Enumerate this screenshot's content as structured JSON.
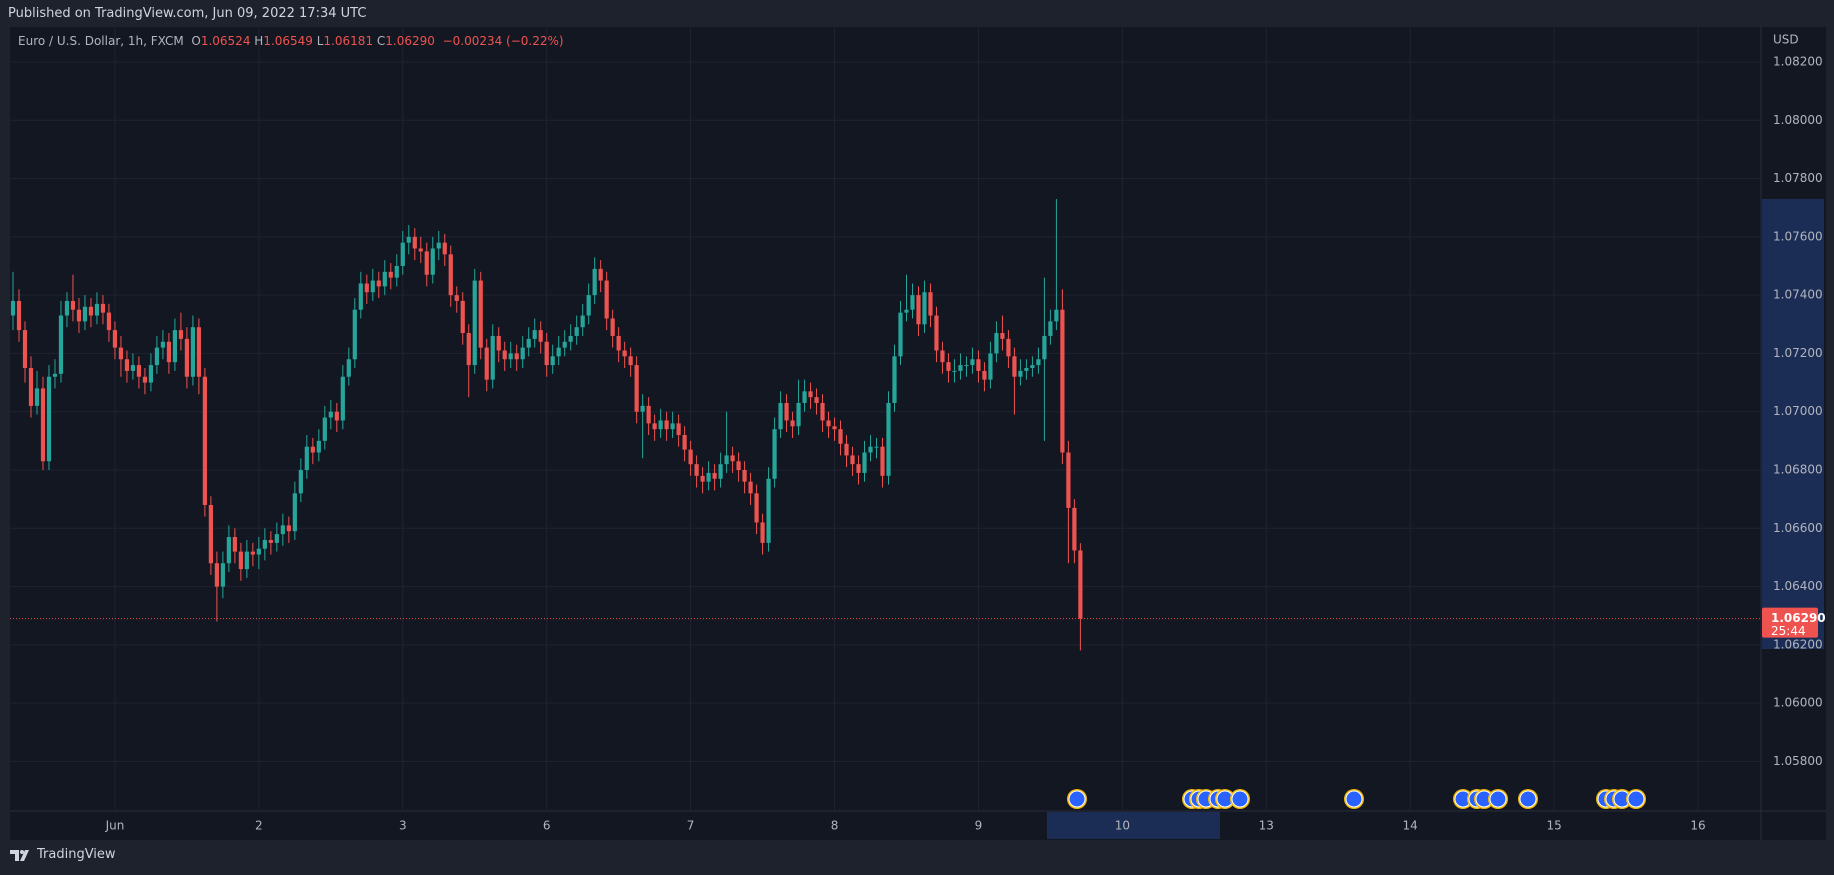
{
  "header": {
    "published": "Published on TradingView.com, Jun 09, 2022 17:34 UTC"
  },
  "footer": {
    "brand": "TradingView"
  },
  "chart_data": {
    "type": "candlestick",
    "legend": {
      "symbol": "Euro / U.S. Dollar, 1h, FXCM",
      "open_label": "O",
      "open": "1.06524",
      "high_label": "H",
      "high": "1.06549",
      "low_label": "L",
      "low": "1.06181",
      "close_label": "C",
      "close": "1.06290",
      "change": "−0.00234 (−0.22%)"
    },
    "currency": "USD",
    "up_color": "#26a69a",
    "down_color": "#ef5350",
    "grid": true,
    "xlim": [
      -0.5,
      291.5
    ],
    "xticks": [
      {
        "value": 17,
        "label": "Jun"
      },
      {
        "value": 41,
        "label": "2"
      },
      {
        "value": 65,
        "label": "3"
      },
      {
        "value": 89,
        "label": "6"
      },
      {
        "value": 113,
        "label": "7"
      },
      {
        "value": 137,
        "label": "8"
      },
      {
        "value": 161,
        "label": "9"
      },
      {
        "value": 185,
        "label": "10"
      },
      {
        "value": 209,
        "label": "13"
      },
      {
        "value": 233,
        "label": "14"
      },
      {
        "value": 257,
        "label": "15"
      },
      {
        "value": 281,
        "label": "16"
      }
    ],
    "ylim": [
      1.0563,
      1.0832
    ],
    "yticks": [
      {
        "value": 1.058,
        "label": "1.05800"
      },
      {
        "value": 1.06,
        "label": "1.06000"
      },
      {
        "value": 1.062,
        "label": "1.06200"
      },
      {
        "value": 1.064,
        "label": "1.06400"
      },
      {
        "value": 1.066,
        "label": "1.06600"
      },
      {
        "value": 1.068,
        "label": "1.06800"
      },
      {
        "value": 1.07,
        "label": "1.07000"
      },
      {
        "value": 1.072,
        "label": "1.07200"
      },
      {
        "value": 1.074,
        "label": "1.07400"
      },
      {
        "value": 1.076,
        "label": "1.07600"
      },
      {
        "value": 1.078,
        "label": "1.07800"
      },
      {
        "value": 1.08,
        "label": "1.08000"
      },
      {
        "value": 1.082,
        "label": "1.08200"
      }
    ],
    "last_price": {
      "value": 1.0629,
      "label": "1.06290",
      "countdown": "25:44"
    },
    "ohlc": [
      [
        1.0733,
        1.0748,
        1.0728,
        1.0738
      ],
      [
        1.0738,
        1.0742,
        1.0724,
        1.0728
      ],
      [
        1.0728,
        1.0731,
        1.071,
        1.0715
      ],
      [
        1.0715,
        1.0719,
        1.0698,
        1.0702
      ],
      [
        1.0702,
        1.0714,
        1.0699,
        1.0708
      ],
      [
        1.0708,
        1.0712,
        1.068,
        1.0683
      ],
      [
        1.0683,
        1.0716,
        1.068,
        1.0712
      ],
      [
        1.0712,
        1.0718,
        1.0708,
        1.0713
      ],
      [
        1.0713,
        1.0738,
        1.071,
        1.0733
      ],
      [
        1.0733,
        1.0741,
        1.0729,
        1.0738
      ],
      [
        1.0738,
        1.0747,
        1.0731,
        1.0735
      ],
      [
        1.0735,
        1.0739,
        1.0727,
        1.0731
      ],
      [
        1.0731,
        1.074,
        1.0728,
        1.0736
      ],
      [
        1.0736,
        1.0739,
        1.0729,
        1.0733
      ],
      [
        1.0733,
        1.0741,
        1.073,
        1.0737
      ],
      [
        1.0737,
        1.074,
        1.073,
        1.0734
      ],
      [
        1.0734,
        1.0737,
        1.0724,
        1.0728
      ],
      [
        1.0728,
        1.0731,
        1.0718,
        1.0722
      ],
      [
        1.0722,
        1.0726,
        1.0712,
        1.0718
      ],
      [
        1.0718,
        1.0721,
        1.071,
        1.0714
      ],
      [
        1.0714,
        1.072,
        1.0711,
        1.0716
      ],
      [
        1.0716,
        1.0719,
        1.0708,
        1.0712
      ],
      [
        1.0712,
        1.0715,
        1.0706,
        1.071
      ],
      [
        1.071,
        1.072,
        1.0707,
        1.0716
      ],
      [
        1.0716,
        1.0726,
        1.0713,
        1.0722
      ],
      [
        1.0722,
        1.0728,
        1.0718,
        1.0724
      ],
      [
        1.0724,
        1.0727,
        1.0713,
        1.0717
      ],
      [
        1.0717,
        1.0732,
        1.0714,
        1.0728
      ],
      [
        1.0728,
        1.0734,
        1.0721,
        1.0725
      ],
      [
        1.0725,
        1.0729,
        1.0708,
        1.0712
      ],
      [
        1.0712,
        1.0733,
        1.0709,
        1.0729
      ],
      [
        1.0729,
        1.0732,
        1.0706,
        1.0712
      ],
      [
        1.0712,
        1.0715,
        1.0664,
        1.0668
      ],
      [
        1.0668,
        1.0671,
        1.0644,
        1.0648
      ],
      [
        1.0648,
        1.0652,
        1.0628,
        1.064
      ],
      [
        1.064,
        1.0652,
        1.0636,
        1.0648
      ],
      [
        1.0648,
        1.0661,
        1.0645,
        1.0657
      ],
      [
        1.0657,
        1.066,
        1.0648,
        1.0652
      ],
      [
        1.0652,
        1.0655,
        1.0642,
        1.0646
      ],
      [
        1.0646,
        1.0656,
        1.0643,
        1.0652
      ],
      [
        1.0652,
        1.0655,
        1.0647,
        1.0651
      ],
      [
        1.0651,
        1.0657,
        1.0646,
        1.0653
      ],
      [
        1.0653,
        1.066,
        1.0649,
        1.0656
      ],
      [
        1.0656,
        1.0659,
        1.0651,
        1.0655
      ],
      [
        1.0655,
        1.0662,
        1.0652,
        1.0658
      ],
      [
        1.0658,
        1.0665,
        1.0654,
        1.0661
      ],
      [
        1.0661,
        1.0664,
        1.0655,
        1.0659
      ],
      [
        1.0659,
        1.0676,
        1.0656,
        1.0672
      ],
      [
        1.0672,
        1.0684,
        1.0669,
        1.068
      ],
      [
        1.068,
        1.0692,
        1.0677,
        1.0688
      ],
      [
        1.0688,
        1.0691,
        1.0682,
        1.0686
      ],
      [
        1.0686,
        1.0694,
        1.0683,
        1.069
      ],
      [
        1.069,
        1.0702,
        1.0687,
        1.0698
      ],
      [
        1.0698,
        1.0704,
        1.0694,
        1.07
      ],
      [
        1.07,
        1.0703,
        1.0693,
        1.0697
      ],
      [
        1.0697,
        1.0716,
        1.0694,
        1.0712
      ],
      [
        1.0712,
        1.0722,
        1.0709,
        1.0718
      ],
      [
        1.0718,
        1.0739,
        1.0715,
        1.0735
      ],
      [
        1.0735,
        1.0748,
        1.0732,
        1.0744
      ],
      [
        1.0744,
        1.0747,
        1.0737,
        1.0741
      ],
      [
        1.0741,
        1.0749,
        1.0738,
        1.0745
      ],
      [
        1.0745,
        1.0748,
        1.0739,
        1.0743
      ],
      [
        1.0743,
        1.0752,
        1.074,
        1.0748
      ],
      [
        1.0748,
        1.0751,
        1.0742,
        1.0746
      ],
      [
        1.0746,
        1.0754,
        1.0743,
        1.075
      ],
      [
        1.075,
        1.0762,
        1.0747,
        1.0758
      ],
      [
        1.0758,
        1.0764,
        1.0754,
        1.076
      ],
      [
        1.076,
        1.0763,
        1.0752,
        1.0756
      ],
      [
        1.0756,
        1.076,
        1.0751,
        1.0755
      ],
      [
        1.0755,
        1.0758,
        1.0743,
        1.0747
      ],
      [
        1.0747,
        1.076,
        1.0744,
        1.0756
      ],
      [
        1.0756,
        1.0762,
        1.0752,
        1.0758
      ],
      [
        1.0758,
        1.0761,
        1.075,
        1.0754
      ],
      [
        1.0754,
        1.0757,
        1.0736,
        1.074
      ],
      [
        1.074,
        1.0743,
        1.0734,
        1.0738
      ],
      [
        1.0738,
        1.0741,
        1.0723,
        1.0727
      ],
      [
        1.0727,
        1.073,
        1.0705,
        1.0716
      ],
      [
        1.0716,
        1.0749,
        1.0713,
        1.0745
      ],
      [
        1.0745,
        1.0748,
        1.0718,
        1.0722
      ],
      [
        1.0722,
        1.0725,
        1.0707,
        1.0711
      ],
      [
        1.0711,
        1.073,
        1.0708,
        1.0726
      ],
      [
        1.0726,
        1.0729,
        1.0717,
        1.0721
      ],
      [
        1.0721,
        1.0724,
        1.0714,
        1.0718
      ],
      [
        1.0718,
        1.0724,
        1.0715,
        1.072
      ],
      [
        1.072,
        1.0723,
        1.0714,
        1.0718
      ],
      [
        1.0718,
        1.0726,
        1.0715,
        1.0722
      ],
      [
        1.0722,
        1.0729,
        1.0719,
        1.0725
      ],
      [
        1.0725,
        1.0732,
        1.0722,
        1.0728
      ],
      [
        1.0728,
        1.0731,
        1.072,
        1.0724
      ],
      [
        1.0724,
        1.0727,
        1.0712,
        1.0716
      ],
      [
        1.0716,
        1.0723,
        1.0713,
        1.0719
      ],
      [
        1.0719,
        1.0726,
        1.0716,
        1.0722
      ],
      [
        1.0722,
        1.0728,
        1.0719,
        1.0724
      ],
      [
        1.0724,
        1.073,
        1.0721,
        1.0726
      ],
      [
        1.0726,
        1.0733,
        1.0723,
        1.0729
      ],
      [
        1.0729,
        1.0737,
        1.0726,
        1.0733
      ],
      [
        1.0733,
        1.0744,
        1.073,
        1.074
      ],
      [
        1.074,
        1.0753,
        1.0737,
        1.0749
      ],
      [
        1.0749,
        1.0752,
        1.0741,
        1.0745
      ],
      [
        1.0745,
        1.0748,
        1.0728,
        1.0732
      ],
      [
        1.0732,
        1.0735,
        1.0722,
        1.0726
      ],
      [
        1.0726,
        1.0729,
        1.0717,
        1.0721
      ],
      [
        1.0721,
        1.0724,
        1.0715,
        1.0719
      ],
      [
        1.0719,
        1.0722,
        1.0712,
        1.0716
      ],
      [
        1.0716,
        1.0719,
        1.0696,
        1.07
      ],
      [
        1.07,
        1.0706,
        1.0684,
        1.0702
      ],
      [
        1.0702,
        1.0705,
        1.0692,
        1.0696
      ],
      [
        1.0696,
        1.0699,
        1.069,
        1.0694
      ],
      [
        1.0694,
        1.0701,
        1.0691,
        1.0697
      ],
      [
        1.0697,
        1.07,
        1.069,
        1.0694
      ],
      [
        1.0694,
        1.07,
        1.0691,
        1.0696
      ],
      [
        1.0696,
        1.0699,
        1.0688,
        1.0692
      ],
      [
        1.0692,
        1.0695,
        1.0683,
        1.0687
      ],
      [
        1.0687,
        1.069,
        1.0678,
        1.0682
      ],
      [
        1.0682,
        1.0685,
        1.0674,
        1.0678
      ],
      [
        1.0678,
        1.0681,
        1.0672,
        1.0676
      ],
      [
        1.0676,
        1.0683,
        1.0673,
        1.0679
      ],
      [
        1.0679,
        1.0682,
        1.0673,
        1.0677
      ],
      [
        1.0677,
        1.0686,
        1.0674,
        1.0682
      ],
      [
        1.0682,
        1.07,
        1.0679,
        1.0685
      ],
      [
        1.0685,
        1.0688,
        1.0679,
        1.0683
      ],
      [
        1.0683,
        1.0686,
        1.0676,
        1.068
      ],
      [
        1.068,
        1.0683,
        1.0672,
        1.0676
      ],
      [
        1.0676,
        1.0679,
        1.0668,
        1.0672
      ],
      [
        1.0672,
        1.0675,
        1.0658,
        1.0662
      ],
      [
        1.0662,
        1.0665,
        1.0651,
        1.0655
      ],
      [
        1.0655,
        1.0681,
        1.0652,
        1.0677
      ],
      [
        1.0677,
        1.0698,
        1.0674,
        1.0694
      ],
      [
        1.0694,
        1.0707,
        1.0691,
        1.0703
      ],
      [
        1.0703,
        1.0706,
        1.0693,
        1.0697
      ],
      [
        1.0697,
        1.07,
        1.0691,
        1.0695
      ],
      [
        1.0695,
        1.0711,
        1.0692,
        1.0703
      ],
      [
        1.0703,
        1.0711,
        1.07,
        1.0707
      ],
      [
        1.0707,
        1.071,
        1.0701,
        1.0705
      ],
      [
        1.0705,
        1.0708,
        1.0699,
        1.0703
      ],
      [
        1.0703,
        1.0706,
        1.0693,
        1.0697
      ],
      [
        1.0697,
        1.07,
        1.0691,
        1.0695
      ],
      [
        1.0695,
        1.0698,
        1.069,
        1.0694
      ],
      [
        1.0694,
        1.0697,
        1.0685,
        1.0689
      ],
      [
        1.0689,
        1.0692,
        1.0681,
        1.0685
      ],
      [
        1.0685,
        1.0688,
        1.0678,
        1.0682
      ],
      [
        1.0682,
        1.0685,
        1.0675,
        1.0679
      ],
      [
        1.0679,
        1.069,
        1.0676,
        1.0686
      ],
      [
        1.0686,
        1.0692,
        1.0683,
        1.0688
      ],
      [
        1.0688,
        1.0691,
        1.0684,
        1.0688
      ],
      [
        1.0688,
        1.0691,
        1.0674,
        1.0678
      ],
      [
        1.0678,
        1.0707,
        1.0675,
        1.0703
      ],
      [
        1.0703,
        1.0723,
        1.07,
        1.0719
      ],
      [
        1.0719,
        1.0738,
        1.0716,
        1.0734
      ],
      [
        1.0734,
        1.0747,
        1.0731,
        1.0735
      ],
      [
        1.0735,
        1.0744,
        1.0732,
        1.074
      ],
      [
        1.074,
        1.0743,
        1.0726,
        1.073
      ],
      [
        1.073,
        1.0745,
        1.0727,
        1.0741
      ],
      [
        1.0741,
        1.0744,
        1.0729,
        1.0733
      ],
      [
        1.0733,
        1.0736,
        1.0717,
        1.0721
      ],
      [
        1.0721,
        1.0724,
        1.0713,
        1.0717
      ],
      [
        1.0717,
        1.072,
        1.071,
        1.0714
      ],
      [
        1.0714,
        1.0718,
        1.071,
        1.0714
      ],
      [
        1.0714,
        1.072,
        1.0711,
        1.0716
      ],
      [
        1.0716,
        1.0719,
        1.0712,
        1.0716
      ],
      [
        1.0716,
        1.0722,
        1.0713,
        1.0718
      ],
      [
        1.0718,
        1.0721,
        1.071,
        1.0714
      ],
      [
        1.0714,
        1.0717,
        1.0707,
        1.0711
      ],
      [
        1.0711,
        1.0724,
        1.0708,
        1.072
      ],
      [
        1.072,
        1.0731,
        1.0717,
        1.0727
      ],
      [
        1.0727,
        1.0733,
        1.0721,
        1.0725
      ],
      [
        1.0725,
        1.0728,
        1.0715,
        1.0719
      ],
      [
        1.0719,
        1.0722,
        1.0699,
        1.0712
      ],
      [
        1.0712,
        1.0718,
        1.0709,
        1.0714
      ],
      [
        1.0714,
        1.0718,
        1.0711,
        1.0715
      ],
      [
        1.0715,
        1.0719,
        1.0712,
        1.0716
      ],
      [
        1.0716,
        1.0722,
        1.0713,
        1.0718
      ],
      [
        1.0718,
        1.0746,
        1.069,
        1.0726
      ],
      [
        1.0726,
        1.0735,
        1.0723,
        1.0731
      ],
      [
        1.0731,
        1.0773,
        1.0728,
        1.0735
      ],
      [
        1.0735,
        1.0742,
        1.0682,
        1.0686
      ],
      [
        1.0686,
        1.069,
        1.0648,
        1.0667
      ],
      [
        1.0667,
        1.067,
        1.0648,
        1.06524
      ],
      [
        1.06524,
        1.06549,
        1.06181,
        1.0629
      ]
    ]
  }
}
